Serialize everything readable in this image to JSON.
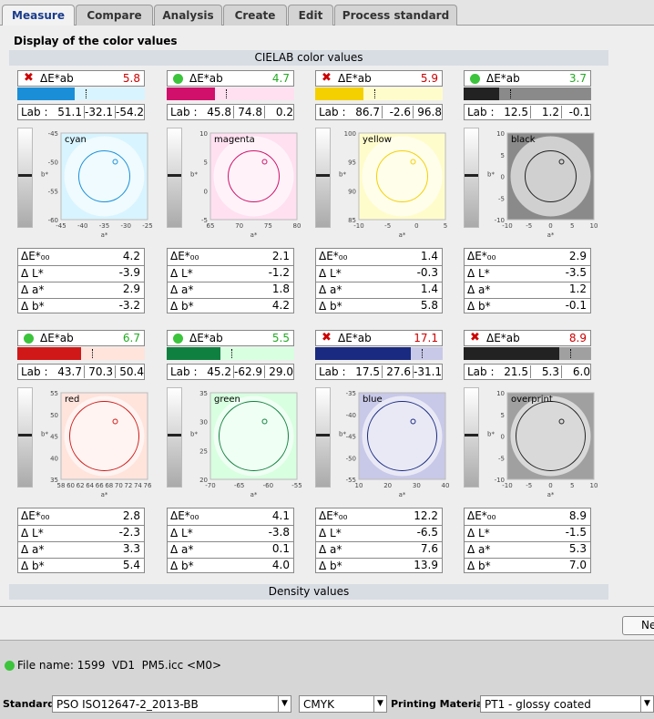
{
  "tabs": [
    "Measure",
    "Compare",
    "Analysis",
    "Create",
    "Edit",
    "Process standard"
  ],
  "section_title": "Display of the color values",
  "cielab_header": "CIELAB color values",
  "de_label": "ΔE*ab",
  "lab_label": "Lab :",
  "axis_x": "a*",
  "axis_y": "b*",
  "stat_labels": [
    "ΔE*₀₀",
    "Δ L*",
    "Δ a*",
    "Δ b*"
  ],
  "patches": [
    {
      "name": "cyan",
      "status": "fail",
      "de": "5.8",
      "lab": [
        "51.1",
        "-32.1",
        "-54.2"
      ],
      "stats": [
        "4.2",
        "-3.9",
        "2.9",
        "-3.2"
      ],
      "xticks": [
        -45,
        -40,
        -35,
        -30,
        -25
      ],
      "yticks": [
        -45,
        -50,
        -55,
        -60
      ],
      "color": "#1a8fd8",
      "light": "#d8f4ff"
    },
    {
      "name": "magenta",
      "status": "ok",
      "de": "4.7",
      "lab": [
        "45.8",
        "74.8",
        "0.2"
      ],
      "stats": [
        "2.1",
        "-1.2",
        "1.8",
        "4.2"
      ],
      "xticks": [
        65,
        70,
        75,
        80
      ],
      "yticks": [
        10,
        5,
        0,
        -5
      ],
      "color": "#d0106a",
      "light": "#ffe0f0"
    },
    {
      "name": "yellow",
      "status": "fail",
      "de": "5.9",
      "lab": [
        "86.7",
        "-2.6",
        "96.8"
      ],
      "stats": [
        "1.4",
        "-0.3",
        "1.4",
        "5.8"
      ],
      "xticks": [
        -10,
        -5,
        0,
        5
      ],
      "yticks": [
        100,
        95,
        90,
        85
      ],
      "color": "#f5d000",
      "light": "#fffccc"
    },
    {
      "name": "black",
      "status": "ok",
      "de": "3.7",
      "lab": [
        "12.5",
        "1.2",
        "-0.1"
      ],
      "stats": [
        "2.9",
        "-3.5",
        "1.2",
        "-0.1"
      ],
      "xticks": [
        -10,
        -5,
        0,
        5,
        10
      ],
      "yticks": [
        10,
        5,
        0,
        -5,
        -10
      ],
      "color": "#222222",
      "light": "#8a8a8a"
    },
    {
      "name": "red",
      "status": "ok",
      "de": "6.7",
      "lab": [
        "43.7",
        "70.3",
        "50.4"
      ],
      "stats": [
        "2.8",
        "-2.3",
        "3.3",
        "5.4"
      ],
      "xticks": [
        58,
        60,
        62,
        64,
        66,
        68,
        70,
        72,
        74,
        76
      ],
      "yticks": [
        55,
        50,
        45,
        40,
        35
      ],
      "color": "#d01818",
      "light": "#ffe4dc"
    },
    {
      "name": "green",
      "status": "ok",
      "de": "5.5",
      "lab": [
        "45.2",
        "-62.9",
        "29.0"
      ],
      "stats": [
        "4.1",
        "-3.8",
        "0.1",
        "4.0"
      ],
      "xticks": [
        -70,
        -65,
        -60,
        -55
      ],
      "yticks": [
        35,
        30,
        25,
        20
      ],
      "color": "#108040",
      "light": "#d8ffe0"
    },
    {
      "name": "blue",
      "status": "fail",
      "de": "17.1",
      "lab": [
        "17.5",
        "27.6",
        "-31.1"
      ],
      "stats": [
        "12.2",
        "-6.5",
        "7.6",
        "13.9"
      ],
      "xticks": [
        10,
        20,
        30,
        40
      ],
      "yticks": [
        -35,
        -40,
        -45,
        -50,
        -55
      ],
      "color": "#1a2a80",
      "light": "#c8c8e8"
    },
    {
      "name": "overprint",
      "status": "fail",
      "de": "8.9",
      "lab": [
        "21.5",
        "5.3",
        "6.0"
      ],
      "stats": [
        "8.9",
        "-1.5",
        "5.3",
        "7.0"
      ],
      "xticks": [
        -10,
        -5,
        0,
        5,
        10
      ],
      "yticks": [
        10,
        5,
        0,
        -5,
        -10
      ],
      "color": "#222222",
      "light": "#a0a0a0"
    }
  ],
  "density_header": "Density values",
  "button": "Ne",
  "file_name": "File name: 1599  VD1  PM5.icc",
  "mode": "<M0>",
  "standard_label": "Standard",
  "standard": "PSO ISO12647-2_2013-BB",
  "colorspace": "CMYK",
  "material_label": "Printing Material",
  "material": "PT1 - glossy coated"
}
